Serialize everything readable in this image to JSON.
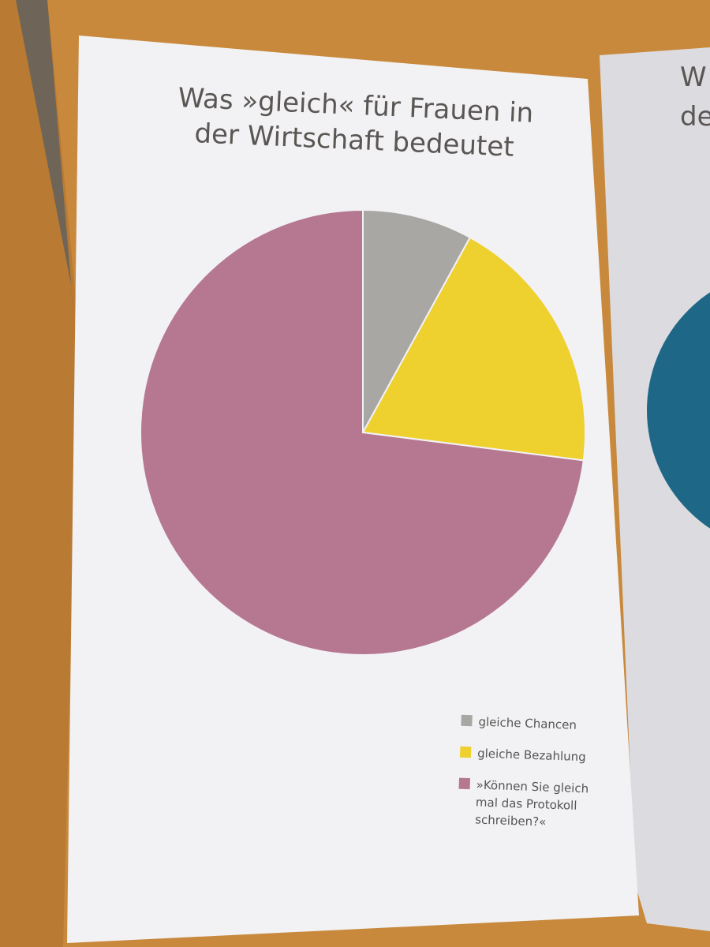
{
  "chart_data": {
    "type": "pie",
    "title": "Was »gleich« für Frauen in der Wirtschaft bedeutet",
    "categories": [
      "gleiche Chancen",
      "gleiche Bezahlung",
      "»Können Sie gleich mal das Protokoll schreiben?«"
    ],
    "values": [
      8,
      19,
      73
    ],
    "colors": [
      "#a9a7a4",
      "#eed02e",
      "#b67891"
    ],
    "start_angle": 0,
    "direction": "clockwise",
    "legend": "bottom-right"
  },
  "right_page": {
    "fragments": [
      "W",
      "de"
    ]
  }
}
